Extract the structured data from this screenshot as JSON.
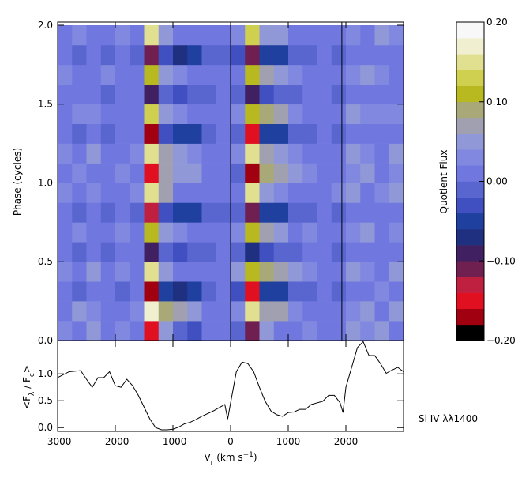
{
  "chart_data": [
    {
      "type": "heatmap",
      "y_label": "Phase (cycles)",
      "xlim": [
        -3000,
        3000
      ],
      "ylim": [
        0,
        2.02
      ],
      "yticks": [
        {
          "value": 0,
          "label": "0.0"
        },
        {
          "value": 0.5,
          "label": "0.5"
        },
        {
          "value": 1,
          "label": "1.0"
        },
        {
          "value": 1.5,
          "label": "1.5"
        },
        {
          "value": 2,
          "label": "2.0"
        }
      ],
      "xticks": [
        -3000,
        -2000,
        -1000,
        0,
        1000,
        2000
      ],
      "reference_lines": [
        0,
        1930
      ],
      "x_edges": [
        -3000,
        -2750,
        -2500,
        -2250,
        -2000,
        -1750,
        -1500,
        -1250,
        -1000,
        -750,
        -500,
        -250,
        0,
        250,
        500,
        750,
        1000,
        1250,
        1500,
        1750,
        2000,
        2250,
        2500,
        2750,
        3000
      ],
      "y_edges": [
        0,
        0.125,
        0.25,
        0.375,
        0.5,
        0.625,
        0.75,
        0.875,
        1,
        1.125,
        1.25,
        1.375,
        1.5,
        1.625,
        1.75,
        1.875,
        2
      ],
      "z": [
        [
          0.03,
          0.02,
          0.04,
          0.01,
          0.03,
          0.02,
          -0.15,
          0.05,
          -0.02,
          -0.03,
          0.0,
          0.02,
          -0.02,
          -0.12,
          0.04,
          0.02,
          0.01,
          0.03,
          0.02,
          0.0,
          0.04,
          0.03,
          0.05,
          0.02
        ],
        [
          0.02,
          0.04,
          0.03,
          0.02,
          0.01,
          0.03,
          0.16,
          0.08,
          0.06,
          0.04,
          0.02,
          0.01,
          0.03,
          0.15,
          0.07,
          0.06,
          0.03,
          0.02,
          0.0,
          0.01,
          0.03,
          0.05,
          0.02,
          0.04
        ],
        [
          0.01,
          -0.02,
          0.02,
          0.0,
          -0.01,
          0.02,
          -0.18,
          -0.04,
          -0.07,
          -0.05,
          -0.02,
          0.0,
          -0.03,
          -0.16,
          -0.05,
          -0.06,
          -0.02,
          -0.01,
          0.01,
          -0.02,
          0.02,
          0.01,
          0.03,
          0.0
        ],
        [
          0.03,
          0.02,
          0.04,
          0.02,
          0.03,
          0.01,
          0.14,
          0.05,
          0.02,
          0.01,
          0.0,
          0.02,
          0.04,
          0.12,
          0.09,
          0.07,
          0.04,
          0.03,
          0.02,
          0.01,
          0.05,
          0.03,
          0.02,
          0.04
        ],
        [
          0.0,
          -0.01,
          0.02,
          -0.02,
          0.01,
          0.0,
          -0.1,
          -0.02,
          -0.03,
          -0.02,
          -0.01,
          0.0,
          -0.02,
          -0.08,
          -0.03,
          -0.02,
          -0.01,
          0.0,
          0.01,
          -0.01,
          0.02,
          0.0,
          0.01,
          0.02
        ],
        [
          0.02,
          0.03,
          0.01,
          0.02,
          0.03,
          0.02,
          0.12,
          0.04,
          0.03,
          0.02,
          0.01,
          0.02,
          0.03,
          0.11,
          0.06,
          0.05,
          0.02,
          0.03,
          0.01,
          0.02,
          0.03,
          0.04,
          0.02,
          0.03
        ],
        [
          0.01,
          -0.01,
          0.0,
          -0.02,
          0.0,
          -0.01,
          -0.13,
          -0.03,
          -0.06,
          -0.05,
          -0.02,
          -0.01,
          -0.02,
          -0.11,
          -0.04,
          -0.05,
          -0.02,
          -0.01,
          0.0,
          -0.01,
          0.01,
          0.02,
          0.0,
          0.01
        ],
        [
          0.03,
          0.02,
          0.03,
          0.01,
          0.02,
          0.03,
          0.15,
          0.06,
          0.02,
          0.01,
          0.0,
          0.02,
          0.02,
          0.14,
          0.05,
          0.03,
          0.02,
          0.01,
          0.02,
          0.03,
          0.04,
          0.02,
          0.03,
          0.05
        ],
        [
          0.02,
          0.03,
          0.02,
          0.01,
          0.03,
          0.02,
          -0.16,
          0.07,
          0.05,
          0.04,
          0.02,
          0.01,
          -0.01,
          -0.17,
          0.08,
          0.07,
          0.05,
          0.03,
          0.02,
          0.01,
          0.03,
          0.04,
          0.02,
          0.03
        ],
        [
          0.03,
          0.02,
          0.04,
          0.02,
          0.02,
          0.03,
          0.15,
          0.07,
          0.05,
          0.03,
          0.02,
          0.02,
          0.03,
          0.14,
          0.07,
          0.05,
          0.03,
          0.02,
          0.01,
          0.02,
          0.04,
          0.03,
          0.02,
          0.04
        ],
        [
          0.0,
          -0.02,
          0.01,
          -0.01,
          0.0,
          0.01,
          -0.17,
          -0.03,
          -0.06,
          -0.05,
          -0.02,
          0.0,
          -0.02,
          -0.15,
          -0.04,
          -0.05,
          -0.02,
          -0.01,
          0.0,
          -0.02,
          0.02,
          0.0,
          0.02,
          0.01
        ],
        [
          0.02,
          0.03,
          0.03,
          0.02,
          0.02,
          0.01,
          0.13,
          0.05,
          0.03,
          0.02,
          0.01,
          0.02,
          0.03,
          0.12,
          0.08,
          0.06,
          0.03,
          0.02,
          0.02,
          0.01,
          0.04,
          0.03,
          0.03,
          0.03
        ],
        [
          0.01,
          0.0,
          0.02,
          -0.01,
          0.01,
          0.0,
          -0.09,
          -0.02,
          -0.03,
          -0.02,
          -0.01,
          0.0,
          -0.02,
          -0.09,
          -0.03,
          -0.02,
          -0.01,
          0.0,
          0.01,
          -0.01,
          0.01,
          0.01,
          0.02,
          0.01
        ],
        [
          0.03,
          0.02,
          0.02,
          0.03,
          0.02,
          0.02,
          0.12,
          0.05,
          0.03,
          0.02,
          0.01,
          0.02,
          0.02,
          0.1,
          0.06,
          0.04,
          0.03,
          0.02,
          0.01,
          0.02,
          0.03,
          0.05,
          0.03,
          0.02
        ],
        [
          0.0,
          -0.01,
          0.01,
          -0.01,
          0.0,
          -0.01,
          -0.12,
          -0.03,
          -0.07,
          -0.06,
          -0.02,
          -0.01,
          -0.03,
          -0.12,
          -0.04,
          -0.05,
          -0.02,
          -0.02,
          0.0,
          -0.01,
          0.02,
          0.01,
          0.0,
          0.02
        ],
        [
          0.02,
          0.03,
          0.02,
          0.02,
          0.03,
          0.02,
          0.14,
          0.05,
          0.02,
          0.01,
          0.01,
          0.02,
          0.03,
          0.13,
          0.05,
          0.04,
          0.02,
          0.02,
          0.01,
          0.02,
          0.03,
          0.02,
          0.04,
          0.03
        ]
      ],
      "zlim": [
        -0.2,
        0.2
      ],
      "colormap": [
        "#000000",
        "#a00010",
        "#e01020",
        "#c02040",
        "#702050",
        "#402060",
        "#203080",
        "#2040a0",
        "#4050c0",
        "#5a66d0",
        "#7078e0",
        "#8088e0",
        "#9098d8",
        "#a0a0b0",
        "#a8a878",
        "#b8b820",
        "#d0d050",
        "#e0e090",
        "#f0f0d0",
        "#f8f8f8"
      ],
      "colorbar_label": "Quotient Flux",
      "colorbar_ticks": [
        {
          "value": 0.2,
          "label": "0.20"
        },
        {
          "value": 0.1,
          "label": "0.10"
        },
        {
          "value": 0,
          "label": "0.00"
        },
        {
          "value": -0.1,
          "label": "−0.10"
        },
        {
          "value": -0.2,
          "label": "−0.20"
        }
      ]
    },
    {
      "type": "line",
      "x_label": [
        {
          "text": "V"
        },
        {
          "text": "r",
          "shift": "sub"
        },
        {
          "text": " (km s"
        },
        {
          "text": "−1",
          "shift": "super"
        },
        {
          "text": ")"
        }
      ],
      "y_label": [
        {
          "text": "<F"
        },
        {
          "text": "λ",
          "shift": "sub"
        },
        {
          "text": " / F"
        },
        {
          "text": "c",
          "shift": "sub"
        },
        {
          "text": ">"
        }
      ],
      "xlim": [
        -3000,
        3000
      ],
      "ylim": [
        -0.07,
        1.62
      ],
      "xticks": [
        -3000,
        -2000,
        -1000,
        0,
        1000,
        2000
      ],
      "yticks": [
        {
          "value": 0,
          "label": "0.0"
        },
        {
          "value": 0.5,
          "label": "0.5"
        },
        {
          "value": 1,
          "label": "1.0"
        }
      ],
      "color": "#000000",
      "annotation": "Si IV λλ1400",
      "x": [
        -3000,
        -2800,
        -2600,
        -2500,
        -2400,
        -2300,
        -2200,
        -2100,
        -2000,
        -1900,
        -1800,
        -1700,
        -1600,
        -1500,
        -1400,
        -1300,
        -1200,
        -1100,
        -1000,
        -900,
        -800,
        -700,
        -600,
        -500,
        -400,
        -300,
        -200,
        -100,
        -50,
        0,
        100,
        200,
        300,
        400,
        500,
        600,
        700,
        800,
        900,
        1000,
        1100,
        1200,
        1300,
        1400,
        1500,
        1600,
        1700,
        1800,
        1900,
        1950,
        2000,
        2100,
        2200,
        2300,
        2400,
        2500,
        2600,
        2700,
        2800,
        2900,
        3000
      ],
      "values": [
        0.93,
        1.04,
        1.06,
        0.9,
        0.75,
        0.93,
        0.93,
        1.04,
        0.78,
        0.75,
        0.9,
        0.78,
        0.6,
        0.38,
        0.16,
        0,
        -0.04,
        -0.04,
        -0.03,
        0.01,
        0.07,
        0.1,
        0.15,
        0.21,
        0.26,
        0.31,
        0.37,
        0.43,
        0.16,
        0.46,
        1.04,
        1.22,
        1.19,
        1.04,
        0.75,
        0.49,
        0.31,
        0.24,
        0.21,
        0.28,
        0.29,
        0.34,
        0.34,
        0.43,
        0.46,
        0.49,
        0.6,
        0.6,
        0.46,
        0.28,
        0.75,
        1.12,
        1.49,
        1.6,
        1.34,
        1.34,
        1.19,
        1.01,
        1.07,
        1.12,
        1.04
      ]
    }
  ]
}
